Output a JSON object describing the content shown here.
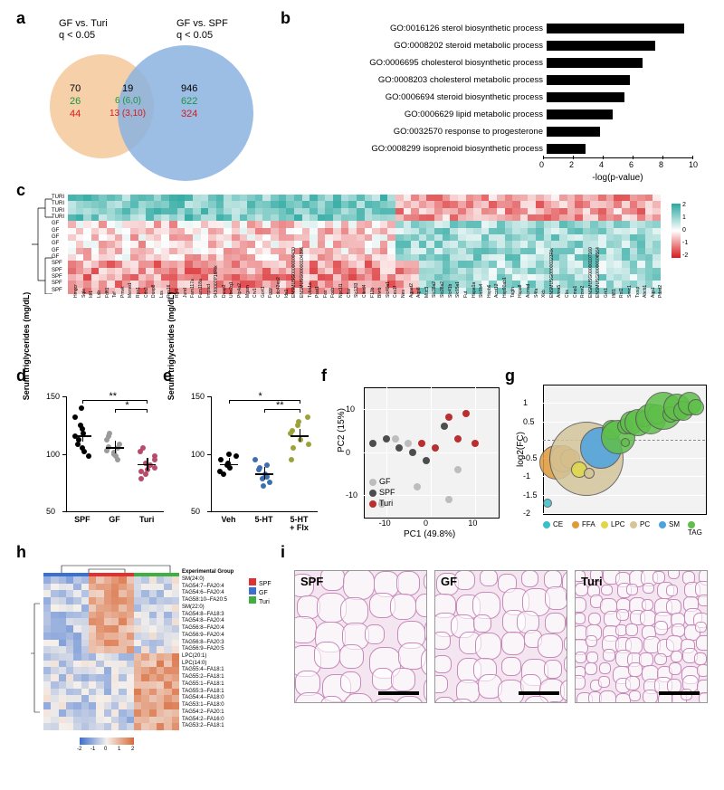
{
  "labels": {
    "a": "a",
    "b": "b",
    "c": "c",
    "d": "d",
    "e": "e",
    "f": "f",
    "g": "g",
    "h": "h",
    "i": "i"
  },
  "venn": {
    "title_left": "GF vs. Turi",
    "title_right": "GF vs. SPF",
    "sub": "q < 0.05",
    "left_color": "#f4c89a",
    "right_color": "#8bb3e0",
    "left_only": {
      "total": "70",
      "up": "26",
      "down": "44"
    },
    "overlap": {
      "total": "19",
      "up": "6 (6,0)",
      "down": "13 (3,10)"
    },
    "right_only": {
      "total": "946",
      "up": "622",
      "down": "324"
    },
    "up_color": "#1a9641",
    "down_color": "#d7191c"
  },
  "go_bars": {
    "xlabel": "-log(p-value)",
    "xmax": 10,
    "terms": [
      {
        "label": "GO:0016126 sterol biosynthetic process",
        "val": 9.2
      },
      {
        "label": "GO:0008202 steroid metabolic process",
        "val": 7.3
      },
      {
        "label": "GO:0006695 cholesterol biosynthetic process",
        "val": 6.4
      },
      {
        "label": "GO:0008203 cholesterol metabolic process",
        "val": 5.6
      },
      {
        "label": "GO:0006694 steroid biosynthetic process",
        "val": 5.2
      },
      {
        "label": "GO:0006629 lipid metabolic process",
        "val": 4.4
      },
      {
        "label": "GO:0032570 response to progesterone",
        "val": 3.6
      },
      {
        "label": "GO:0008299 isoprenoid biosynthetic process",
        "val": 2.6
      }
    ],
    "xticks": [
      0,
      2,
      4,
      6,
      8,
      10
    ]
  },
  "heatmap_c": {
    "groups": [
      "TURI",
      "TURI",
      "TURI",
      "TURI",
      "GF",
      "GF",
      "GF",
      "GF",
      "GF",
      "GF",
      "SPF",
      "SPF",
      "SPF",
      "SPF",
      "SPF"
    ],
    "genes": [
      "Hmgcr",
      "Sqle",
      "Idi1",
      "Ldlr",
      "Fdft1",
      "Tef",
      "Pmvk",
      "Memo1",
      "Rpn1",
      "Cds2",
      "Dusp8",
      "Lss",
      "Rgs16",
      "Rgl1",
      "Jund",
      "Fam117a",
      "Fam118a",
      "Impact",
      "9430007P16Rik",
      "Dusp3",
      "Ube2q1",
      "Ptp4a2",
      "Mgam",
      "Crv1",
      "Gort1",
      "Fggy",
      "Cdc42ep2",
      "Ids1",
      "ENSMUSG00000100430",
      "ENSMUSG00000104396",
      "Tuba1a",
      "Psat1",
      "Fas",
      "Fosb",
      "Npc1l1",
      "Cflar",
      "Slc13l3",
      "Cited4",
      "F13b",
      "Blvrb",
      "Slc40a1",
      "Ces1f",
      "Nes",
      "Agpat2",
      "Aqp8",
      "Muc3",
      "Slc38a2",
      "Slc28a2",
      "Slc41b",
      "Slc15a1",
      "Fut",
      "Hspa1a",
      "Slc1b4",
      "Hspb6",
      "Acot12",
      "Hsp90ab1",
      "Tagln",
      "Hspa8",
      "Acmsd",
      "S4fa",
      "Xkb",
      "ENSMUSG00000223Rik",
      "Anxa5",
      "Cbs",
      "Cmo1",
      "Rcor2",
      "ENSMUSG00000107160",
      "ENSMUSG00000106564",
      "Grk1",
      "Ift81",
      "Rnf2",
      "Smic1",
      "Txnip",
      "Abcb1",
      "Aqp1",
      "Pdzd2"
    ],
    "colorbar": {
      "min": -2,
      "max": 2,
      "low": "#d7191c",
      "mid": "#ffffff",
      "high": "#2ba8a0"
    }
  },
  "panel_d": {
    "ylabel": "Serum triglycerides (mg/dL)",
    "ymin": 50,
    "ymax": 150,
    "yticks": [
      50,
      100,
      150
    ],
    "groups": [
      {
        "name": "SPF",
        "color": "#000000",
        "points": [
          122,
          118,
          132,
          108,
          140,
          105,
          115,
          98,
          102,
          125,
          112
        ]
      },
      {
        "name": "GF",
        "color": "#9a9a9a",
        "points": [
          108,
          105,
          112,
          100,
          118,
          95,
          115,
          98,
          101,
          106,
          103
        ]
      },
      {
        "name": "Turi",
        "color": "#b84a6a",
        "points": [
          95,
          88,
          102,
          82,
          98,
          78,
          92,
          86,
          90,
          105,
          85
        ]
      }
    ],
    "sig": [
      {
        "from": 0,
        "to": 2,
        "label": "**"
      },
      {
        "from": 1,
        "to": 2,
        "label": "*"
      }
    ]
  },
  "panel_e": {
    "ylabel": "Serum triglycerides (mg/dL)",
    "ymin": 50,
    "ymax": 150,
    "yticks": [
      50,
      100,
      150
    ],
    "groups": [
      {
        "name": "Veh",
        "color": "#000000",
        "points": [
          92,
          88,
          95,
          82,
          90,
          100,
          85,
          98
        ]
      },
      {
        "name": "5-HT",
        "color": "#3b6fb0",
        "points": [
          82,
          78,
          88,
          75,
          80,
          95,
          72,
          86,
          90
        ]
      },
      {
        "name": "5-HT\n+ Flx",
        "color": "#9ca23a",
        "points": [
          120,
          112,
          128,
          105,
          118,
          132,
          108,
          95,
          125
        ]
      }
    ],
    "sig": [
      {
        "from": 0,
        "to": 2,
        "label": "*"
      },
      {
        "from": 1,
        "to": 2,
        "label": "**"
      }
    ]
  },
  "panel_f": {
    "xlabel": "PC1 (49.8%)",
    "ylabel": "PC2 (15%)",
    "xmin": -15,
    "xmax": 15,
    "ymin": -15,
    "ymax": 15,
    "xticks": [
      -10,
      0,
      10
    ],
    "yticks": [
      -10,
      0,
      10
    ],
    "groups": [
      {
        "name": "GF",
        "color": "#bdbdbd",
        "points": [
          [
            -11,
            -12
          ],
          [
            -8,
            3
          ],
          [
            -5,
            2
          ],
          [
            -3,
            -8
          ],
          [
            4,
            -11
          ],
          [
            6,
            -4
          ]
        ]
      },
      {
        "name": "SPF",
        "color": "#4d4d4d",
        "points": [
          [
            -13,
            2
          ],
          [
            -10,
            3
          ],
          [
            -7,
            1
          ],
          [
            -4,
            0
          ],
          [
            -1,
            -2
          ],
          [
            3,
            6
          ]
        ]
      },
      {
        "name": "Turi",
        "color": "#b92f2f",
        "points": [
          [
            -2,
            2
          ],
          [
            1,
            1
          ],
          [
            4,
            8
          ],
          [
            6,
            3
          ],
          [
            8,
            9
          ],
          [
            10,
            2
          ]
        ]
      }
    ]
  },
  "panel_g": {
    "ylabel": "log2(FC)",
    "ymin": -2,
    "ymax": 1.5,
    "yticks": [
      -2,
      -1.5,
      -1,
      -0.5,
      0,
      0.5,
      1
    ],
    "legend": [
      {
        "name": "CE",
        "color": "#3bbfc9"
      },
      {
        "name": "FFA",
        "color": "#e09a3a"
      },
      {
        "name": "LPC",
        "color": "#e0d84a"
      },
      {
        "name": "PC",
        "color": "#d4c59a"
      },
      {
        "name": "SM",
        "color": "#4aa3e0"
      },
      {
        "name": "TAG",
        "color": "#5fbf4a"
      }
    ],
    "bubbles": [
      {
        "x": 0.02,
        "y": -1.7,
        "r": 4,
        "c": "#3bbfc9"
      },
      {
        "x": 0.08,
        "y": -0.6,
        "r": 18,
        "c": "#e09a3a"
      },
      {
        "x": 0.12,
        "y": -0.5,
        "r": 14,
        "c": "#e09a3a"
      },
      {
        "x": 0.16,
        "y": -0.5,
        "r": 10,
        "c": "#e09a3a"
      },
      {
        "x": 0.26,
        "y": -0.5,
        "r": 40,
        "c": "#d4c59a"
      },
      {
        "x": 0.22,
        "y": -0.8,
        "r": 8,
        "c": "#e0d84a"
      },
      {
        "x": 0.28,
        "y": -0.9,
        "r": 5,
        "c": "#d4c59a"
      },
      {
        "x": 0.35,
        "y": -0.2,
        "r": 22,
        "c": "#4aa3e0"
      },
      {
        "x": 0.42,
        "y": 0.3,
        "r": 10,
        "c": "#5fbf4a"
      },
      {
        "x": 0.46,
        "y": 0.1,
        "r": 18,
        "c": "#5fbf4a"
      },
      {
        "x": 0.5,
        "y": 0.4,
        "r": 8,
        "c": "#5fbf4a"
      },
      {
        "x": 0.54,
        "y": 0.5,
        "r": 12,
        "c": "#5fbf4a"
      },
      {
        "x": 0.58,
        "y": 0.5,
        "r": 14,
        "c": "#5fbf4a"
      },
      {
        "x": 0.62,
        "y": 0.6,
        "r": 8,
        "c": "#5fbf4a"
      },
      {
        "x": 0.66,
        "y": 0.6,
        "r": 16,
        "c": "#5fbf4a"
      },
      {
        "x": 0.7,
        "y": 0.7,
        "r": 10,
        "c": "#5fbf4a"
      },
      {
        "x": 0.74,
        "y": 0.8,
        "r": 20,
        "c": "#5fbf4a"
      },
      {
        "x": 0.78,
        "y": 0.7,
        "r": 8,
        "c": "#5fbf4a"
      },
      {
        "x": 0.82,
        "y": 0.9,
        "r": 14,
        "c": "#5fbf4a"
      },
      {
        "x": 0.86,
        "y": 0.8,
        "r": 10,
        "c": "#5fbf4a"
      },
      {
        "x": 0.9,
        "y": 1.0,
        "r": 12,
        "c": "#5fbf4a"
      },
      {
        "x": 0.94,
        "y": 0.9,
        "r": 8,
        "c": "#5fbf4a"
      },
      {
        "x": 0.5,
        "y": -0.05,
        "r": 4,
        "c": "#5fbf4a"
      }
    ]
  },
  "panel_h": {
    "group_legend": [
      {
        "name": "SPF",
        "color": "#e03030"
      },
      {
        "name": "GF",
        "color": "#3b6fd0"
      },
      {
        "name": "Turi",
        "color": "#3fb03f"
      }
    ],
    "group_label": "Experimental Group",
    "col_groups": [
      "GF",
      "GF",
      "GF",
      "GF",
      "GF",
      "GF",
      "SPF",
      "SPF",
      "SPF",
      "SPF",
      "SPF",
      "SPF",
      "Turi",
      "Turi",
      "Turi",
      "Turi",
      "Turi",
      "Turi"
    ],
    "lipids": [
      "SM(24:0)",
      "TAG54:7--FA20:4",
      "TAG54:6--FA20:4",
      "TAG58:10--FA20:5",
      "SM(22:0)",
      "TAG54:8--FA18:3",
      "TAG54:8--FA20:4",
      "TAG56:8--FA20:4",
      "TAG56:9--FA20:4",
      "TAG56:8--FA20:3",
      "TAG56:9--FA20:5",
      "LPC(20:1)",
      "LPC(14:0)",
      "TAG55:4--FA18:1",
      "TAG55:2--FA18:1",
      "TAG55:1--FA18:1",
      "TAG55:3--FA18:1",
      "TAG54:4--FA18:0",
      "TAG53:1--FA18:0",
      "TAG54:2--FA20:1",
      "TAG54:2--FA16:0",
      "TAG53:2--FA18:1"
    ],
    "colorbar": {
      "min": -2,
      "max": 2,
      "low": "#3b6fd0",
      "mid": "#f5f0eb",
      "high": "#d96a3a"
    }
  },
  "panel_i": {
    "labels": [
      "SPF",
      "GF",
      "Turi"
    ],
    "bg": "#f3e8f1",
    "border": "#c88aba",
    "cell_sizes": [
      28,
      24,
      15
    ]
  }
}
